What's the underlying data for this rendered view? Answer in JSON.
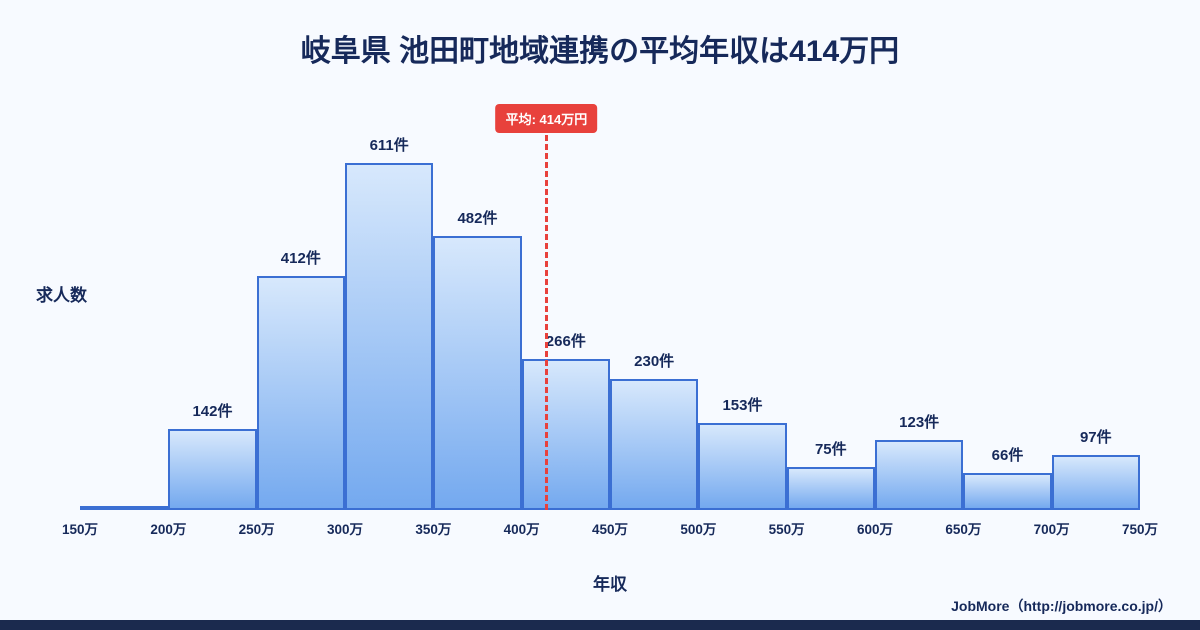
{
  "title": "岐阜県 池田町地域連携の平均年収は414万円",
  "y_axis_label": "求人数",
  "x_axis_label": "年収",
  "footer": "JobMore（http://jobmore.co.jp/）",
  "average_badge": "平均: 414万円",
  "colors": {
    "background": "#f7faff",
    "title": "#16295a",
    "bar_fill_top": "#d7e8fc",
    "bar_fill_bottom": "#74a9ef",
    "bar_border": "#3b6fd3",
    "average_line": "#e8413c",
    "badge_bg": "#e8413c",
    "badge_text": "#ffffff",
    "footer_bar": "#1b2a4e"
  },
  "chart_data": {
    "type": "bar",
    "title": "岐阜県 池田町地域連携の平均年収は414万円",
    "xlabel": "年収",
    "ylabel": "求人数",
    "x_range": [
      150,
      750
    ],
    "ylim": [
      0,
      650
    ],
    "x_ticks": [
      "150万",
      "200万",
      "250万",
      "300万",
      "350万",
      "400万",
      "450万",
      "500万",
      "550万",
      "600万",
      "650万",
      "700万",
      "750万"
    ],
    "bins": [
      {
        "range": "150万-200万",
        "count": 7,
        "label": ""
      },
      {
        "range": "200万-250万",
        "count": 142,
        "label": "142件"
      },
      {
        "range": "250万-300万",
        "count": 412,
        "label": "412件"
      },
      {
        "range": "300万-350万",
        "count": 611,
        "label": "611件"
      },
      {
        "range": "350万-400万",
        "count": 482,
        "label": "482件"
      },
      {
        "range": "400万-450万",
        "count": 266,
        "label": "266件"
      },
      {
        "range": "450万-500万",
        "count": 230,
        "label": "230件"
      },
      {
        "range": "500万-550万",
        "count": 153,
        "label": "153件"
      },
      {
        "range": "550万-600万",
        "count": 75,
        "label": "75件"
      },
      {
        "range": "600万-650万",
        "count": 123,
        "label": "123件"
      },
      {
        "range": "650万-700万",
        "count": 66,
        "label": "66件"
      },
      {
        "range": "700万-750万",
        "count": 97,
        "label": "97件"
      }
    ],
    "average": {
      "value": 414,
      "label": "平均: 414万円"
    },
    "legend": null,
    "grid": false
  }
}
